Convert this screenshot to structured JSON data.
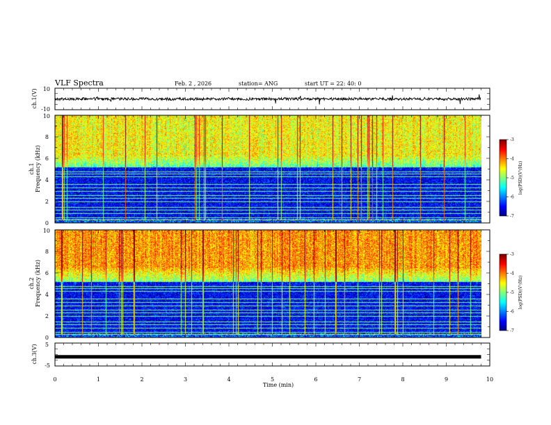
{
  "header": {
    "title": "VLF Spectra",
    "date": "Feb. 2 , 2026",
    "station": "station= ANG",
    "start_ut": "start UT =   22: 40: 0"
  },
  "chart_data": [
    {
      "type": "line",
      "name": "ch1-waveform",
      "ylabel": "ch.1(V)",
      "ylim": [
        -10,
        10
      ],
      "y_ticks": [
        "10",
        "-10"
      ],
      "baseline": 0,
      "xlim": [
        0,
        10
      ],
      "xlabel": "Time  (min)",
      "x_ticks": [
        "0",
        "1",
        "2",
        "3",
        "4",
        "5",
        "6",
        "7",
        "8",
        "9",
        "10"
      ],
      "data_end_min": 9.8
    },
    {
      "type": "heatmap",
      "name": "ch1-spectrogram",
      "ylabel_line1": "ch.1",
      "ylabel_line2": "Frequency  (kHz)",
      "ylim": [
        0,
        10
      ],
      "y_ticks": [
        "0",
        "2",
        "4",
        "6",
        "8",
        "10"
      ],
      "xlim": [
        0,
        10
      ],
      "colorbar": {
        "label": "log(PSD)(V²/Hz)",
        "range": [
          -7,
          -3
        ],
        "ticks": [
          "-3",
          "-4",
          "-5",
          "-6",
          "-7"
        ]
      }
    },
    {
      "type": "heatmap",
      "name": "ch2-spectrogram",
      "ylabel_line1": "ch.2",
      "ylabel_line2": "Frequency  (kHz)",
      "ylim": [
        0,
        10
      ],
      "y_ticks": [
        "0",
        "2",
        "4",
        "6",
        "8",
        "10"
      ],
      "xlim": [
        0,
        10
      ],
      "colorbar": {
        "label": "log(PSD)(V²/Hz)",
        "range": [
          -7,
          -3
        ],
        "ticks": [
          "-3",
          "-4",
          "-5",
          "-6",
          "-7"
        ]
      }
    },
    {
      "type": "line",
      "name": "ch3-waveform",
      "ylabel": "ch.3(V)",
      "ylim": [
        -5,
        5
      ],
      "y_ticks": [
        "5",
        "0",
        "-5"
      ],
      "level": -1.0
    }
  ]
}
